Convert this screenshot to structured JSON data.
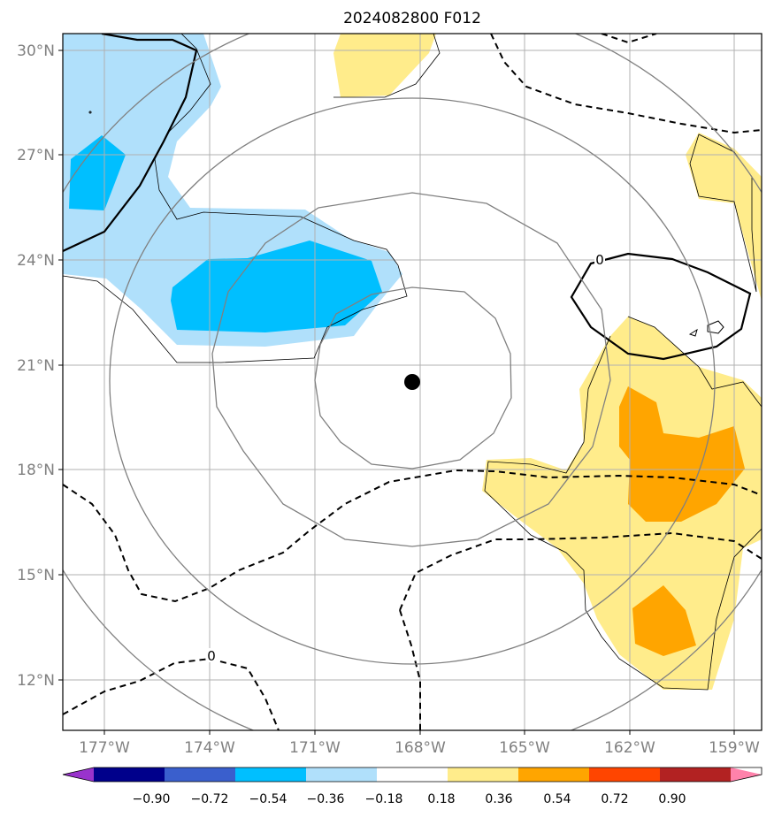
{
  "title": "2024082800 F012",
  "axes": {
    "lon_labels": [
      "177°W",
      "174°W",
      "171°W",
      "168°W",
      "165°W",
      "162°W",
      "159°W"
    ],
    "lat_labels": [
      "30°N",
      "27°N",
      "24°N",
      "21°N",
      "18°N",
      "15°N",
      "12°N"
    ]
  },
  "contour_label": "0",
  "colorbar": {
    "ticks": [
      "−0.90",
      "−0.72",
      "−0.54",
      "−0.36",
      "−0.18",
      "0.18",
      "0.36",
      "0.54",
      "0.72",
      "0.90"
    ],
    "colors": [
      "#9933cc",
      "#00008b",
      "#3a5fcd",
      "#00bfff",
      "#b0e0fb",
      "#ffffff",
      "#ffec8b",
      "#ffa500",
      "#ff4500",
      "#b22222",
      "#ff82ab"
    ]
  },
  "colors": {
    "light_blue": "#b0e0fb",
    "blue": "#00bfff",
    "light_yellow": "#ffec8b",
    "orange": "#ffa500",
    "range_rings": "#808080",
    "gridlines": "#b0b0b0"
  },
  "storm_center_icon": "filled-circle"
}
